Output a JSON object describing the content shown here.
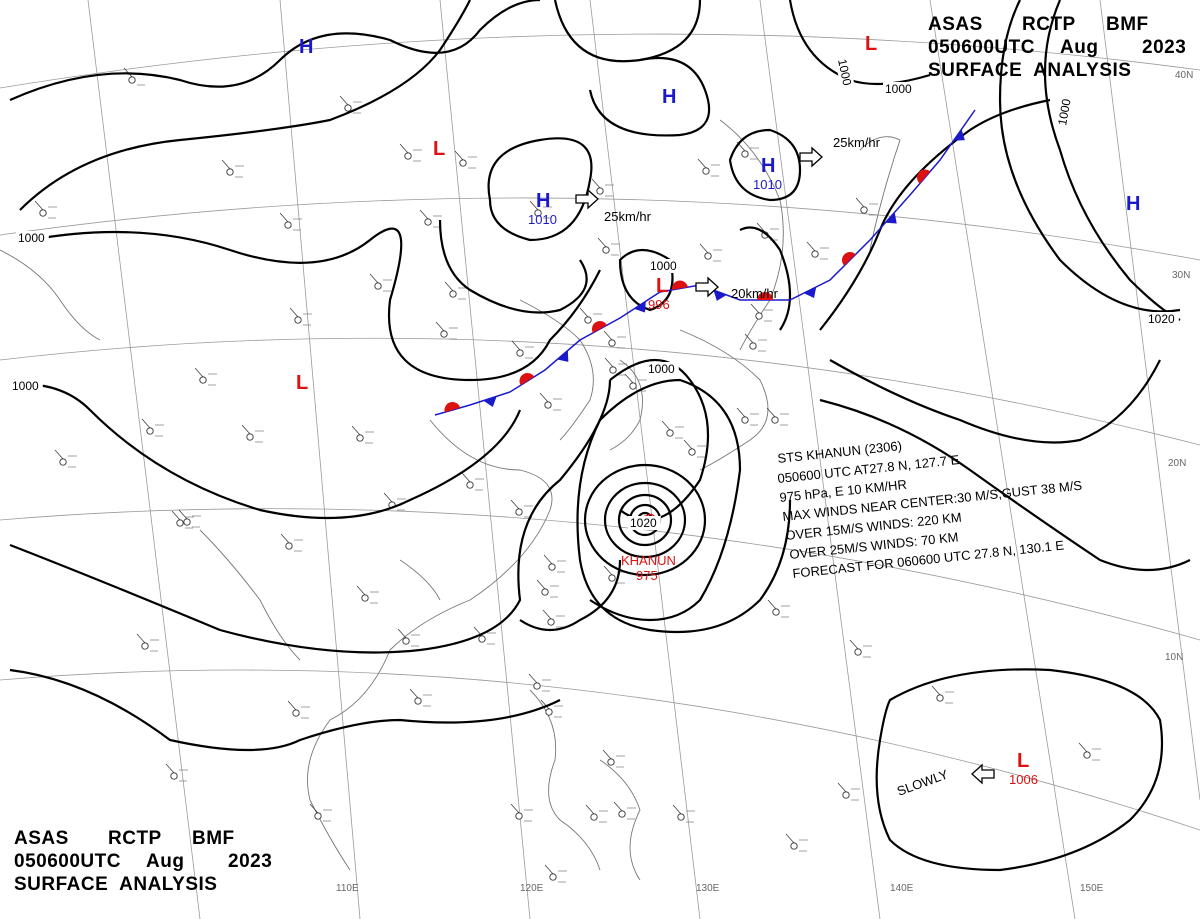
{
  "header": {
    "top": {
      "line1": [
        "ASAS",
        "RCTP",
        "BMF"
      ],
      "line2": [
        "050600UTC",
        "Aug",
        "2023"
      ],
      "line3": "SURFACE  ANALYSIS"
    },
    "bottom": {
      "line1": [
        "ASAS",
        "RCTP",
        "BMF"
      ],
      "line2": [
        "050600UTC",
        "Aug",
        "2023"
      ],
      "line3": "SURFACE  ANALYSIS"
    }
  },
  "longitude_labels": [
    "110E",
    "120E",
    "130E",
    "140E",
    "150E"
  ],
  "latitude_labels": [
    "40N",
    "30N",
    "20N",
    "10N"
  ],
  "isobar_labels": [
    "1000",
    "1000",
    "1000",
    "1000",
    "1000",
    "1000",
    "1000",
    "1020",
    "1020"
  ],
  "pressure_systems": [
    {
      "type": "H",
      "color": "#1a1acc"
    },
    {
      "type": "H",
      "color": "#1a1acc"
    },
    {
      "type": "H",
      "color": "#1a1acc",
      "pressure": "1010"
    },
    {
      "type": "H",
      "color": "#1a1acc",
      "pressure": "1010"
    },
    {
      "type": "H",
      "color": "#1a1acc"
    },
    {
      "type": "L",
      "color": "#dd1111"
    },
    {
      "type": "L",
      "color": "#dd1111"
    },
    {
      "type": "L",
      "color": "#dd1111"
    },
    {
      "type": "L",
      "color": "#dd1111",
      "pressure": "996"
    },
    {
      "type": "L",
      "color": "#dd1111",
      "pressure": "1006"
    }
  ],
  "typhoon": {
    "name": "KHANUN",
    "pressure": "975",
    "color": "#dd1111",
    "info": [
      "STS KHANUN (2306)",
      "050600 UTC AT27.8 N, 127.7 E",
      "975 hPa, E 10 KM/HR",
      "MAX WINDS NEAR CENTER:30 M/S,GUST 38 M/S",
      "OVER 15M/S WINDS: 220 KM",
      "OVER 25M/S WINDS: 70 KM",
      "FORECAST FOR 060600 UTC 27.8 N, 130.1 E"
    ]
  },
  "motion_labels": [
    "25km/hr",
    "25km/hr",
    "20km/hr",
    "SLOWLY"
  ],
  "front": {
    "type": "stationary",
    "warm_color": "#dd1111",
    "cold_color": "#1a1acc"
  },
  "colors": {
    "high": "#1a1acc",
    "low": "#dd1111",
    "isobar": "#000000",
    "grid": "#9a9a9a",
    "coast": "#777777"
  }
}
